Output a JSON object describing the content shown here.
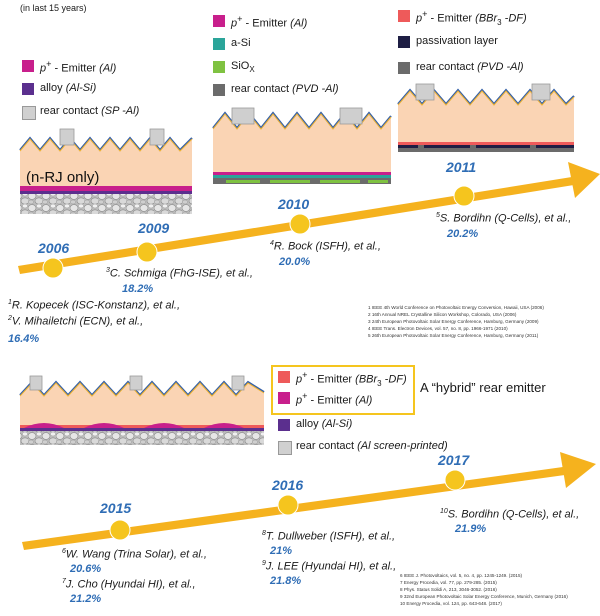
{
  "header_note": "(in last 15 years)",
  "colors": {
    "emitter_al": "#c81f8c",
    "alloy": "#5b2f8e",
    "asi": "#2ba59a",
    "siox": "#7fc241",
    "rear_pvd": "#6b6b6b",
    "emitter_bbr3": "#ee5a5a",
    "passivation": "#1e1e44",
    "arrow": "#f5b21e",
    "year_blue": "#2f6db5",
    "highlight_box": "#f5c51e"
  },
  "legend1": {
    "emitter_pre": "p",
    "emitter_sup": "+",
    "emitter_mid": " - Emitter ",
    "emitter_italic": "(Al)",
    "alloy_label": "alloy ",
    "alloy_italic": "(Al-Si)",
    "rear_label": "rear contact ",
    "rear_italic": "(SP -Al)"
  },
  "legend2": {
    "emitter_pre": "p",
    "emitter_sup": "+",
    "emitter_mid": " - Emitter ",
    "emitter_italic": "(Al)",
    "asi_label": "a-Si",
    "siox_label": "SiO",
    "siox_sub": "X",
    "rear_label": "rear contact ",
    "rear_italic": "(PVD -Al)"
  },
  "legend3": {
    "emitter_pre": "p",
    "emitter_sup": "+",
    "emitter_mid": " - Emitter ",
    "emitter_italic": "(BBr",
    "emitter_sub": "3",
    "emitter_tail": " -DF)",
    "passivation_label": "passivation layer",
    "rear_label": "rear contact ",
    "rear_italic": "(PVD -Al)"
  },
  "nrj_label": "(n-RJ only)",
  "timeline1": {
    "years": [
      "2006",
      "2009",
      "2010",
      "2011"
    ],
    "cite_2006_a_sup": "1",
    "cite_2006_a": "R. Kopecek (ISC-Konstanz), et al.,",
    "cite_2006_b_sup": "2",
    "cite_2006_b": "V. Mihailetchi (ECN), et al.,",
    "eff_2006": "16.4%",
    "cite_2009_sup": "3",
    "cite_2009": "C. Schmiga (FhG-ISE), et al.,",
    "eff_2009": "18.2%",
    "cite_2010_sup": "4",
    "cite_2010": "R. Bock (ISFH), et al.,",
    "eff_2010": "20.0%",
    "cite_2011_sup": "5",
    "cite_2011": "S. Bordihn (Q-Cells), et al.,",
    "eff_2011": "20.2%"
  },
  "refs1": [
    "1 IEEE 4th World Conference on Photovoltaic Energy Conversion, Hawaii, USA (2006)",
    "2 16th Annual NREL Crystalline Silicon Workshop, Colorado, USA (2006)",
    "3 24th European Photovoltaic Solar Energy Conference, Hamburg, Germany (2009)",
    "4 IEEE Trans. Electron Devices, vol. 57, no. 8, pp. 1966-1971 (2010)",
    "5 26th European Photovoltaic Solar Energy Conference, Hamburg, Germany (2011)"
  ],
  "legend4": {
    "emitter1_pre": "p",
    "emitter1_sup": "+",
    "emitter1_mid": " - Emitter ",
    "emitter1_italic": "(BBr",
    "emitter1_sub": "3",
    "emitter1_tail": " -DF)",
    "emitter2_pre": "p",
    "emitter2_sup": "+",
    "emitter2_mid": " - Emitter ",
    "emitter2_italic": "(Al)",
    "alloy_label": "alloy ",
    "alloy_italic": "(Al-Si)",
    "rear_label": "rear contact ",
    "rear_italic": "(Al screen-printed)"
  },
  "hybrid_label": "A “hybrid” rear emitter",
  "timeline2": {
    "years": [
      "2015",
      "2016",
      "2017"
    ],
    "cite_2015_a_sup": "6",
    "cite_2015_a": "W. Wang (Trina Solar), et al.,",
    "eff_2015_a": "20.6%",
    "cite_2015_b_sup": "7",
    "cite_2015_b": "J. Cho (Hyundai HI), et al.,",
    "eff_2015_b": "21.2%",
    "cite_2016_a_sup": "8",
    "cite_2016_a": "T. Dullweber (ISFH), et al.,",
    "eff_2016_a": "21%",
    "cite_2016_b_sup": "9",
    "cite_2016_b": "J. LEE (Hyundai HI), et al.,",
    "eff_2016_b": "21.8%",
    "cite_2017_sup": "10",
    "cite_2017": "S. Bordihn (Q-Cells), et al.,",
    "eff_2017": "21.9%"
  },
  "refs2": [
    "6 IEEE J. Photovoltaics, vol. 5, no. 4, pp. 1245-1249. (2015)",
    "7 Energy Procedia, vol. 77, pp. 279-285. (2015)",
    "8 Phys. Status Solidi A, 213, 3046-3052. (2016)",
    "9 32nd European Photovoltaic Solar Energy Conference, Munich, Germany (2016)",
    "10 Energy Procedia, vol. 124, pp. 643-648. (2017)"
  ]
}
